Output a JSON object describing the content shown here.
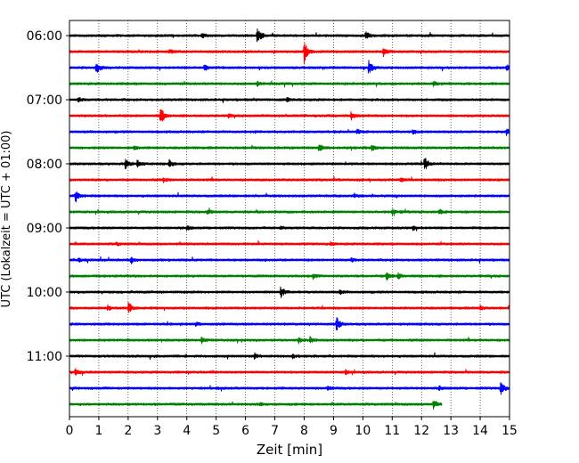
{
  "chart_data": {
    "type": "line",
    "title": "",
    "xlabel": "Zeit  [min]",
    "ylabel": "UTC (Lokalzeit = UTC + 01:00)",
    "xlim": [
      0,
      15
    ],
    "x_ticks": [
      "0",
      "1",
      "2",
      "3",
      "4",
      "5",
      "6",
      "7",
      "8",
      "9",
      "10",
      "11",
      "12",
      "13",
      "14",
      "15"
    ],
    "y_time_labels": [
      "06:00",
      "07:00",
      "08:00",
      "09:00",
      "10:00",
      "11:00"
    ],
    "grid": "vertical dotted",
    "trace_colors": [
      "#000000",
      "#ff0000",
      "#0000ff",
      "#008000"
    ],
    "rows": [
      {
        "start": "06:00",
        "color": "#000000",
        "end_min": 15,
        "events": [
          [
            6.4,
            1.0
          ],
          [
            10.1,
            0.5
          ],
          [
            4.5,
            0.25
          ]
        ]
      },
      {
        "start": "06:15",
        "color": "#ff0000",
        "end_min": 15,
        "events": [
          [
            8.0,
            1.2
          ],
          [
            10.7,
            0.5
          ],
          [
            3.4,
            0.2
          ]
        ]
      },
      {
        "start": "06:30",
        "color": "#0000ff",
        "end_min": 15,
        "events": [
          [
            0.9,
            0.7
          ],
          [
            10.2,
            0.8
          ],
          [
            4.6,
            0.35
          ],
          [
            14.9,
            0.3
          ]
        ]
      },
      {
        "start": "06:45",
        "color": "#008000",
        "end_min": 15,
        "events": [
          [
            12.4,
            0.3
          ],
          [
            6.4,
            0.2
          ]
        ]
      },
      {
        "start": "07:00",
        "color": "#000000",
        "end_min": 15,
        "events": [
          [
            0.3,
            0.25
          ],
          [
            7.4,
            0.2
          ]
        ]
      },
      {
        "start": "07:15",
        "color": "#ff0000",
        "end_min": 15,
        "events": [
          [
            3.1,
            1.0
          ],
          [
            9.6,
            0.45
          ],
          [
            5.4,
            0.2
          ]
        ]
      },
      {
        "start": "07:30",
        "color": "#0000ff",
        "end_min": 15,
        "events": [
          [
            9.8,
            0.25
          ],
          [
            14.9,
            0.25
          ],
          [
            11.7,
            0.2
          ]
        ]
      },
      {
        "start": "07:45",
        "color": "#008000",
        "end_min": 15,
        "events": [
          [
            8.5,
            0.4
          ],
          [
            10.3,
            0.35
          ],
          [
            2.2,
            0.2
          ]
        ]
      },
      {
        "start": "08:00",
        "color": "#000000",
        "end_min": 15,
        "events": [
          [
            1.9,
            0.55
          ],
          [
            2.3,
            0.45
          ],
          [
            3.4,
            0.4
          ],
          [
            12.1,
            0.8
          ]
        ]
      },
      {
        "start": "08:15",
        "color": "#ff0000",
        "end_min": 15,
        "events": [
          [
            3.2,
            0.2
          ],
          [
            11.3,
            0.2
          ]
        ]
      },
      {
        "start": "08:30",
        "color": "#0000ff",
        "end_min": 15,
        "events": [
          [
            0.2,
            0.7
          ],
          [
            9.7,
            0.2
          ]
        ]
      },
      {
        "start": "08:45",
        "color": "#008000",
        "end_min": 15,
        "events": [
          [
            4.7,
            0.25
          ],
          [
            11.0,
            0.3
          ],
          [
            12.6,
            0.25
          ]
        ]
      },
      {
        "start": "09:00",
        "color": "#000000",
        "end_min": 15,
        "events": [
          [
            4.0,
            0.25
          ],
          [
            7.2,
            0.2
          ],
          [
            11.7,
            0.2
          ]
        ]
      },
      {
        "start": "09:15",
        "color": "#ff0000",
        "end_min": 15,
        "events": [
          [
            1.6,
            0.15
          ],
          [
            8.9,
            0.15
          ]
        ]
      },
      {
        "start": "09:30",
        "color": "#0000ff",
        "end_min": 15,
        "events": [
          [
            2.1,
            0.35
          ],
          [
            0.3,
            0.2
          ],
          [
            9.6,
            0.2
          ]
        ]
      },
      {
        "start": "09:45",
        "color": "#008000",
        "end_min": 15,
        "events": [
          [
            10.8,
            0.45
          ],
          [
            11.2,
            0.35
          ],
          [
            8.3,
            0.3
          ]
        ]
      },
      {
        "start": "10:00",
        "color": "#000000",
        "end_min": 15,
        "events": [
          [
            7.2,
            0.6
          ],
          [
            9.2,
            0.2
          ]
        ]
      },
      {
        "start": "10:15",
        "color": "#ff0000",
        "end_min": 15,
        "events": [
          [
            2.0,
            0.75
          ],
          [
            14.0,
            0.25
          ],
          [
            1.3,
            0.25
          ]
        ]
      },
      {
        "start": "10:30",
        "color": "#0000ff",
        "end_min": 15,
        "events": [
          [
            9.1,
            0.8
          ],
          [
            4.3,
            0.2
          ]
        ]
      },
      {
        "start": "10:45",
        "color": "#008000",
        "end_min": 15,
        "events": [
          [
            4.5,
            0.3
          ],
          [
            7.8,
            0.35
          ],
          [
            8.2,
            0.3
          ]
        ]
      },
      {
        "start": "11:00",
        "color": "#000000",
        "end_min": 15,
        "events": [
          [
            6.3,
            0.25
          ],
          [
            7.6,
            0.2
          ]
        ]
      },
      {
        "start": "11:15",
        "color": "#ff0000",
        "end_min": 15,
        "events": [
          [
            0.2,
            0.45
          ],
          [
            9.4,
            0.25
          ]
        ]
      },
      {
        "start": "11:30",
        "color": "#0000ff",
        "end_min": 15,
        "events": [
          [
            14.7,
            0.8
          ],
          [
            8.8,
            0.2
          ],
          [
            12.6,
            0.2
          ]
        ]
      },
      {
        "start": "11:45",
        "color": "#008000",
        "end_min": 12.7,
        "events": [
          [
            12.4,
            0.4
          ],
          [
            6.5,
            0.15
          ]
        ]
      }
    ]
  }
}
